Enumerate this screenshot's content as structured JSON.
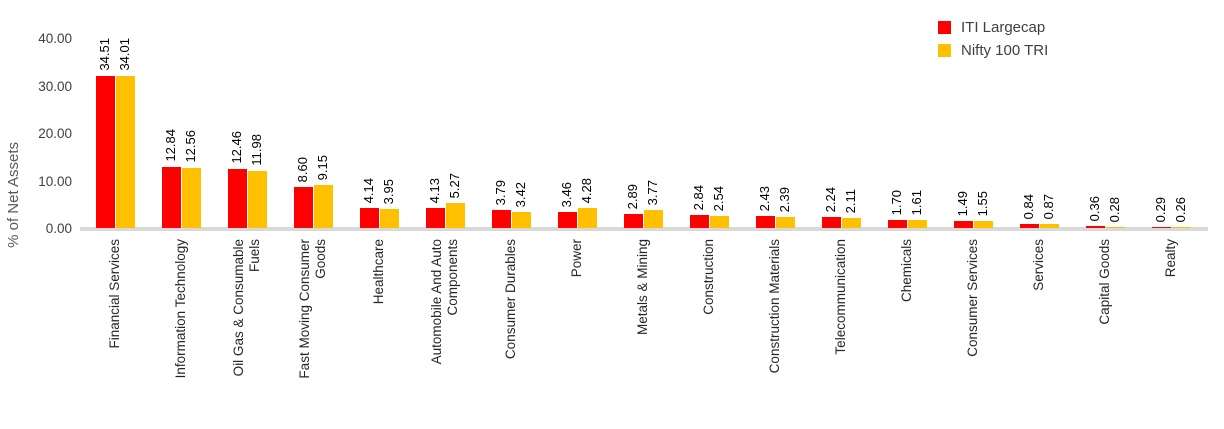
{
  "chart_data": {
    "type": "bar",
    "title": "",
    "xlabel": "",
    "ylabel": "% of Net Assets",
    "ylim": [
      0,
      40
    ],
    "ytick_labels": [
      "40.00",
      "30.00",
      "20.00",
      "10.00",
      "0.00"
    ],
    "grid": false,
    "legend_position": "top-right",
    "categories": [
      "Financial Services",
      "Information Technology",
      "Oil Gas & Consumable Fuels",
      "Fast Moving Consumer Goods",
      "Healthcare",
      "Automobile And Auto Components",
      "Consumer Durables",
      "Power",
      "Metals & Mining",
      "Construction",
      "Construction Materials",
      "Telecommunication",
      "Chemicals",
      "Consumer Services",
      "Services",
      "Capital Goods",
      "Realty"
    ],
    "category_label_lines": [
      [
        "Financial Services"
      ],
      [
        "Information Technology"
      ],
      [
        "Oil Gas & Consumable",
        "Fuels"
      ],
      [
        "Fast Moving Consumer",
        "Goods"
      ],
      [
        "Healthcare"
      ],
      [
        "Automobile And Auto",
        "Components"
      ],
      [
        "Consumer Durables"
      ],
      [
        "Power"
      ],
      [
        "Metals & Mining"
      ],
      [
        "Construction"
      ],
      [
        "Construction Materials"
      ],
      [
        "Telecommunication"
      ],
      [
        "Chemicals"
      ],
      [
        "Consumer Services"
      ],
      [
        "Services"
      ],
      [
        "Capital Goods"
      ],
      [
        "Realty"
      ]
    ],
    "series": [
      {
        "name": "ITI Largecap",
        "color": "#ff0000",
        "values": [
          34.51,
          12.84,
          12.46,
          8.6,
          4.14,
          4.13,
          3.79,
          3.46,
          2.89,
          2.84,
          2.43,
          2.24,
          1.7,
          1.49,
          0.84,
          0.36,
          0.29
        ],
        "value_labels": [
          "34.51",
          "12.84",
          "12.46",
          "8.60",
          "4.14",
          "4.13",
          "3.79",
          "3.46",
          "2.89",
          "2.84",
          "2.43",
          "2.24",
          "1.70",
          "1.49",
          "0.84",
          "0.36",
          "0.29"
        ]
      },
      {
        "name": "Nifty 100 TRI",
        "color": "#ffc000",
        "values": [
          34.01,
          12.56,
          11.98,
          9.15,
          3.95,
          5.27,
          3.42,
          4.28,
          3.77,
          2.54,
          2.39,
          2.11,
          1.61,
          1.55,
          0.87,
          0.28,
          0.26
        ],
        "value_labels": [
          "34.01",
          "12.56",
          "11.98",
          "9.15",
          "3.95",
          "5.27",
          "3.42",
          "4.28",
          "3.77",
          "2.54",
          "2.39",
          "2.11",
          "1.61",
          "1.55",
          "0.87",
          "0.28",
          "0.26"
        ]
      }
    ]
  },
  "axis": {
    "ylabel": "% of Net Assets"
  },
  "legend": {
    "items": [
      {
        "label": "ITI Largecap",
        "color": "#ff0000"
      },
      {
        "label": "Nifty 100 TRI",
        "color": "#ffc000"
      }
    ]
  },
  "colors": {
    "axis_line": "#d9d9d9",
    "tick_text": "#404040",
    "axis_title_text": "#595959",
    "category_text": "#262626",
    "value_text": "#000000",
    "background": "#ffffff"
  }
}
